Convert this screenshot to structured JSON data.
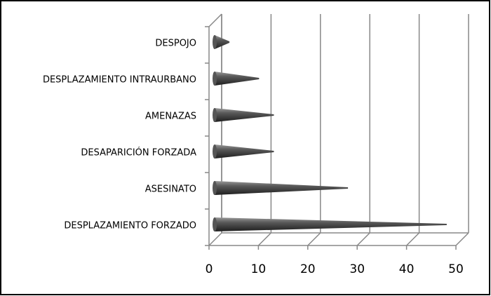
{
  "chart_data": {
    "type": "cone-bar",
    "categories": [
      "DESPOJO",
      "DESPLAZAMIENTO INTRAURBANO",
      "AMENAZAS",
      "DESAPARICIÓN FORZADA",
      "ASESINATO",
      "DESPLAZAMIENTO FORZADO"
    ],
    "values": [
      3,
      9,
      12,
      12,
      27,
      47
    ],
    "color": "#3a3a3a",
    "xlim": [
      0,
      50
    ],
    "xticks": [
      0,
      10,
      20,
      30,
      40,
      50
    ],
    "grid": true
  }
}
